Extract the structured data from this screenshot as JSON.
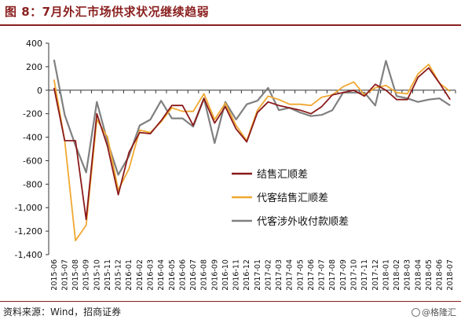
{
  "title": "图 8：7月外汇市场供求状况继续趋弱",
  "source": "资料来源：Wind，招商证券",
  "watermark": "@格隆汇",
  "chart_data": {
    "type": "line",
    "title": "",
    "xlabel": "",
    "ylabel": "",
    "ylim": [
      -1400,
      400
    ],
    "yticks": [
      -1400,
      -1200,
      -1000,
      -800,
      -600,
      -400,
      -200,
      0,
      200,
      400
    ],
    "legend_position": "center-right",
    "grid": false,
    "categories": [
      "2015-06",
      "2015-07",
      "2015-08",
      "2015-09",
      "2015-10",
      "2015-11",
      "2015-12",
      "2016-01",
      "2016-02",
      "2016-03",
      "2016-04",
      "2016-05",
      "2016-06",
      "2016-07",
      "2016-08",
      "2016-09",
      "2016-10",
      "2016-11",
      "2016-12",
      "2017-01",
      "2017-02",
      "2017-03",
      "2017-04",
      "2017-05",
      "2017-06",
      "2017-07",
      "2017-08",
      "2017-09",
      "2017-10",
      "2017-11",
      "2017-12",
      "2018-01",
      "2018-02",
      "2018-03",
      "2018-04",
      "2018-05",
      "2018-06",
      "2018-07"
    ],
    "series": [
      {
        "name": "结售汇顺差",
        "color": "#8b1a1a",
        "values": [
          20,
          -430,
          -430,
          -1100,
          -200,
          -480,
          -890,
          -530,
          -360,
          -370,
          -260,
          -130,
          -130,
          -300,
          -70,
          -280,
          -140,
          -330,
          -440,
          -190,
          -100,
          -130,
          -150,
          -170,
          -200,
          -140,
          -40,
          -20,
          0,
          -50,
          50,
          0,
          -80,
          -80,
          110,
          190,
          60,
          -80
        ]
      },
      {
        "name": "代客结售汇顺差",
        "color": "#f0a830",
        "values": [
          90,
          -430,
          -1280,
          -1150,
          -250,
          -400,
          -850,
          -670,
          -340,
          -360,
          -270,
          -150,
          -180,
          -180,
          -30,
          -250,
          -110,
          -300,
          -430,
          -170,
          -50,
          -80,
          -120,
          -120,
          -130,
          -60,
          -40,
          30,
          70,
          -40,
          20,
          40,
          -20,
          -30,
          140,
          220,
          60,
          -10
        ]
      },
      {
        "name": "代客涉外收付款顺差",
        "color": "#808080",
        "values": [
          260,
          -210,
          -470,
          -700,
          -100,
          -440,
          -720,
          -560,
          -300,
          -250,
          -90,
          -240,
          -240,
          -310,
          -70,
          -450,
          -100,
          -250,
          -120,
          -90,
          20,
          -170,
          -150,
          -190,
          -220,
          -210,
          -170,
          -20,
          -20,
          -20,
          -130,
          250,
          -50,
          -70,
          -100,
          -80,
          -70,
          -130
        ]
      }
    ]
  }
}
